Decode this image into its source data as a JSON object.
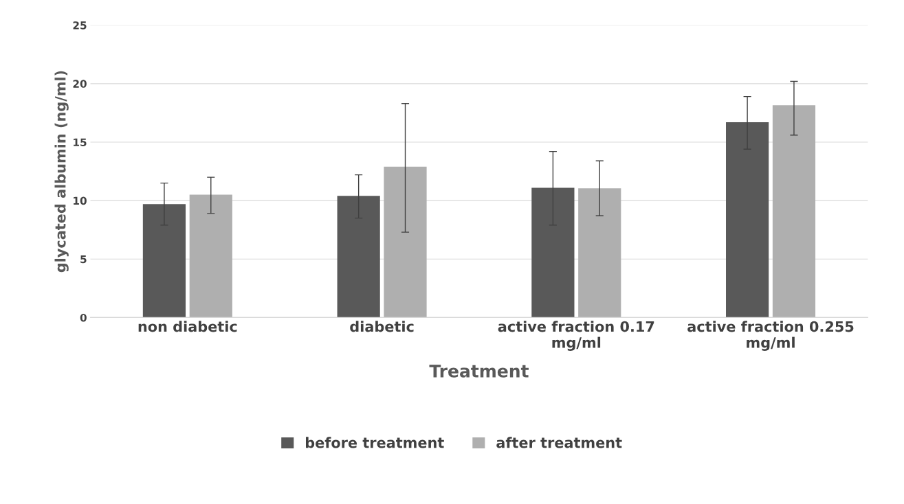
{
  "chart_data": {
    "type": "bar",
    "xlabel": "Treatment",
    "ylabel": "glycated albumin (ng/ml)",
    "categories": [
      "non diabetic",
      "diabetic",
      "active fraction 0.17 mg/ml",
      "active fraction 0.255 mg/ml"
    ],
    "series": [
      {
        "name": "before treatment",
        "color": "#595959",
        "values": [
          9.7,
          10.4,
          11.1,
          16.7
        ],
        "errors": [
          [
            7.9,
            11.5
          ],
          [
            8.5,
            12.2
          ],
          [
            7.9,
            14.2
          ],
          [
            14.4,
            18.9
          ]
        ]
      },
      {
        "name": "after treatment",
        "color": "#afafaf",
        "values": [
          10.5,
          12.9,
          11.05,
          18.15
        ],
        "errors": [
          [
            8.9,
            12.0
          ],
          [
            7.3,
            18.3
          ],
          [
            8.7,
            13.4
          ],
          [
            15.6,
            20.2
          ]
        ]
      }
    ],
    "ylim": [
      0,
      25
    ],
    "yticks": [
      0,
      5,
      10,
      15,
      20,
      25
    ],
    "grid": "y",
    "legend": "bottom"
  }
}
